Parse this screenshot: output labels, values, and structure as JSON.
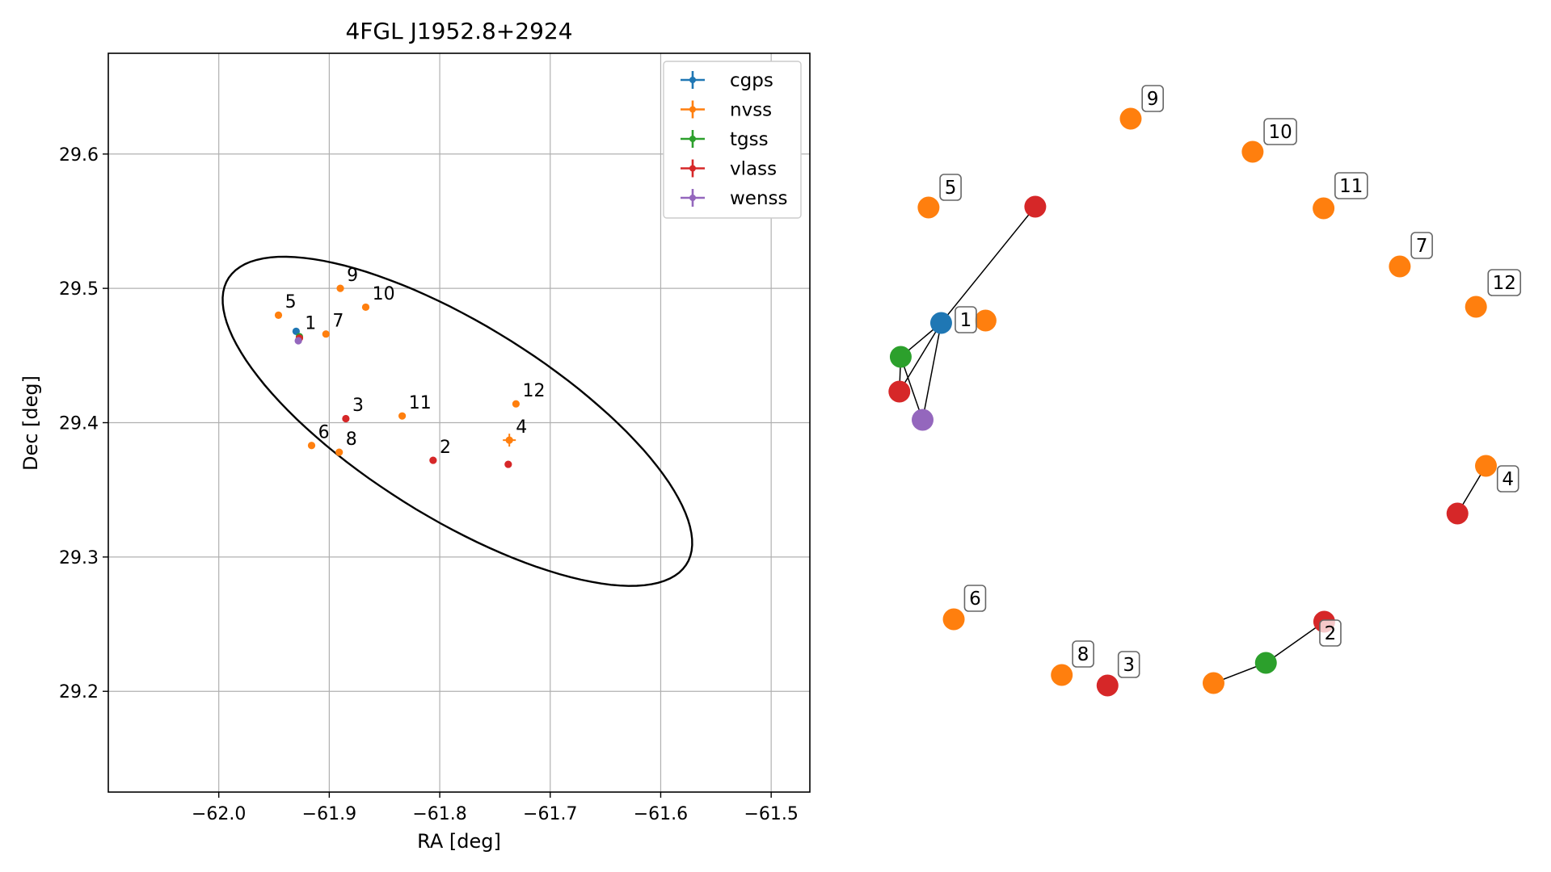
{
  "chart_data": [
    {
      "type": "scatter",
      "title": "4FGL J1952.8+2924",
      "xlabel": "RA [deg]",
      "ylabel": "Dec [deg]",
      "xlim": [
        -62.1,
        -61.465
      ],
      "ylim": [
        29.125,
        29.675
      ],
      "xticks": [
        -62.0,
        -61.9,
        -61.8,
        -61.7,
        -61.6,
        -61.5
      ],
      "xtick_labels": [
        "−62.0",
        "−61.9",
        "−61.8",
        "−61.7",
        "−61.6",
        "−61.5"
      ],
      "yticks": [
        29.2,
        29.3,
        29.4,
        29.5,
        29.6
      ],
      "ytick_labels": [
        "29.2",
        "29.3",
        "29.4",
        "29.5",
        "29.6"
      ],
      "grid": true,
      "legend_position": "top-right",
      "series": [
        {
          "name": "cgps",
          "color": "#1f77b4",
          "points": [
            {
              "x": -61.93,
              "y": 29.468
            }
          ]
        },
        {
          "name": "nvss",
          "color": "#ff7f0e",
          "points": [
            {
              "x": -61.946,
              "y": 29.48
            },
            {
              "x": -61.903,
              "y": 29.466
            },
            {
              "x": -61.89,
              "y": 29.5
            },
            {
              "x": -61.867,
              "y": 29.486
            },
            {
              "x": -61.916,
              "y": 29.383
            },
            {
              "x": -61.891,
              "y": 29.378
            },
            {
              "x": -61.834,
              "y": 29.405
            },
            {
              "x": -61.731,
              "y": 29.414
            },
            {
              "x": -61.737,
              "y": 29.387
            }
          ]
        },
        {
          "name": "tgss",
          "color": "#2ca02c",
          "points": [
            {
              "x": -61.927,
              "y": 29.464
            }
          ]
        },
        {
          "name": "vlass",
          "color": "#d62728",
          "points": [
            {
              "x": -61.927,
              "y": 29.463
            },
            {
              "x": -61.885,
              "y": 29.403
            },
            {
              "x": -61.806,
              "y": 29.372
            },
            {
              "x": -61.738,
              "y": 29.369
            }
          ]
        },
        {
          "name": "wenss",
          "color": "#9467bd",
          "points": [
            {
              "x": -61.928,
              "y": 29.461
            }
          ]
        }
      ],
      "annotations": [
        {
          "text": "1",
          "x": -61.925,
          "y": 29.466
        },
        {
          "text": "2",
          "x": -61.803,
          "y": 29.374
        },
        {
          "text": "3",
          "x": -61.882,
          "y": 29.405
        },
        {
          "text": "4",
          "x": -61.734,
          "y": 29.389
        },
        {
          "text": "5",
          "x": -61.943,
          "y": 29.482
        },
        {
          "text": "6",
          "x": -61.913,
          "y": 29.385
        },
        {
          "text": "7",
          "x": -61.9,
          "y": 29.468
        },
        {
          "text": "8",
          "x": -61.888,
          "y": 29.38
        },
        {
          "text": "9",
          "x": -61.887,
          "y": 29.502
        },
        {
          "text": "10",
          "x": -61.864,
          "y": 29.488
        },
        {
          "text": "11",
          "x": -61.831,
          "y": 29.407
        },
        {
          "text": "12",
          "x": -61.728,
          "y": 29.416
        }
      ],
      "ellipse": {
        "center": [
          -61.784,
          29.401
        ],
        "semi_major": 0.232,
        "semi_minor": 0.083,
        "angle_deg": -24
      }
    },
    {
      "type": "scatter",
      "title": "",
      "axes_visible": false,
      "xlim": [
        0,
        1
      ],
      "ylim": [
        0,
        1
      ],
      "marker_size": "large",
      "points": [
        {
          "series": "cgps",
          "x": 0.103,
          "y": 0.64
        },
        {
          "series": "nvss",
          "x": 0.17,
          "y": 0.643
        },
        {
          "series": "nvss",
          "x": 0.084,
          "y": 0.783
        },
        {
          "series": "nvss",
          "x": 0.389,
          "y": 0.893
        },
        {
          "series": "nvss",
          "x": 0.573,
          "y": 0.852
        },
        {
          "series": "nvss",
          "x": 0.68,
          "y": 0.782
        },
        {
          "series": "nvss",
          "x": 0.795,
          "y": 0.71
        },
        {
          "series": "nvss",
          "x": 0.91,
          "y": 0.66
        },
        {
          "series": "nvss",
          "x": 0.925,
          "y": 0.463
        },
        {
          "series": "nvss",
          "x": 0.122,
          "y": 0.273
        },
        {
          "series": "nvss",
          "x": 0.285,
          "y": 0.204
        },
        {
          "series": "nvss",
          "x": 0.514,
          "y": 0.194
        },
        {
          "series": "tgss",
          "x": 0.042,
          "y": 0.598
        },
        {
          "series": "tgss",
          "x": 0.593,
          "y": 0.219
        },
        {
          "series": "vlass",
          "x": 0.04,
          "y": 0.555
        },
        {
          "series": "vlass",
          "x": 0.245,
          "y": 0.784
        },
        {
          "series": "vlass",
          "x": 0.882,
          "y": 0.404
        },
        {
          "series": "vlass",
          "x": 0.681,
          "y": 0.27
        },
        {
          "series": "vlass",
          "x": 0.354,
          "y": 0.191
        },
        {
          "series": "wenss",
          "x": 0.075,
          "y": 0.52
        }
      ],
      "links": [
        [
          0,
          2
        ],
        [
          0,
          3
        ],
        [
          0,
          4
        ],
        [
          0,
          5
        ],
        [
          0,
          18
        ],
        [
          0,
          19
        ],
        [
          0,
          2
        ]
      ],
      "labels": [
        {
          "text": "1",
          "x": 0.128,
          "y": 0.638
        },
        {
          "text": "2",
          "x": 0.678,
          "y": 0.25
        },
        {
          "text": "3",
          "x": 0.374,
          "y": 0.211
        },
        {
          "text": "4",
          "x": 0.946,
          "y": 0.441
        },
        {
          "text": "5",
          "x": 0.105,
          "y": 0.802
        },
        {
          "text": "6",
          "x": 0.142,
          "y": 0.293
        },
        {
          "text": "7",
          "x": 0.816,
          "y": 0.73
        },
        {
          "text": "8",
          "x": 0.305,
          "y": 0.224
        },
        {
          "text": "9",
          "x": 0.41,
          "y": 0.912
        },
        {
          "text": "10",
          "x": 0.594,
          "y": 0.871
        },
        {
          "text": "11",
          "x": 0.701,
          "y": 0.804
        },
        {
          "text": "12",
          "x": 0.932,
          "y": 0.684
        }
      ],
      "connections": [
        {
          "from": {
            "x": 0.103,
            "y": 0.64
          },
          "to": {
            "x": 0.245,
            "y": 0.784
          }
        },
        {
          "from": {
            "x": 0.103,
            "y": 0.64
          },
          "to": {
            "x": 0.042,
            "y": 0.598
          }
        },
        {
          "from": {
            "x": 0.103,
            "y": 0.64
          },
          "to": {
            "x": 0.04,
            "y": 0.555
          }
        },
        {
          "from": {
            "x": 0.103,
            "y": 0.64
          },
          "to": {
            "x": 0.075,
            "y": 0.52
          }
        },
        {
          "from": {
            "x": 0.042,
            "y": 0.598
          },
          "to": {
            "x": 0.04,
            "y": 0.555
          }
        },
        {
          "from": {
            "x": 0.042,
            "y": 0.598
          },
          "to": {
            "x": 0.075,
            "y": 0.52
          }
        },
        {
          "from": {
            "x": 0.593,
            "y": 0.219
          },
          "to": {
            "x": 0.681,
            "y": 0.27
          }
        },
        {
          "from": {
            "x": 0.514,
            "y": 0.194
          },
          "to": {
            "x": 0.593,
            "y": 0.219
          }
        },
        {
          "from": {
            "x": 0.925,
            "y": 0.463
          },
          "to": {
            "x": 0.882,
            "y": 0.404
          }
        }
      ]
    }
  ]
}
